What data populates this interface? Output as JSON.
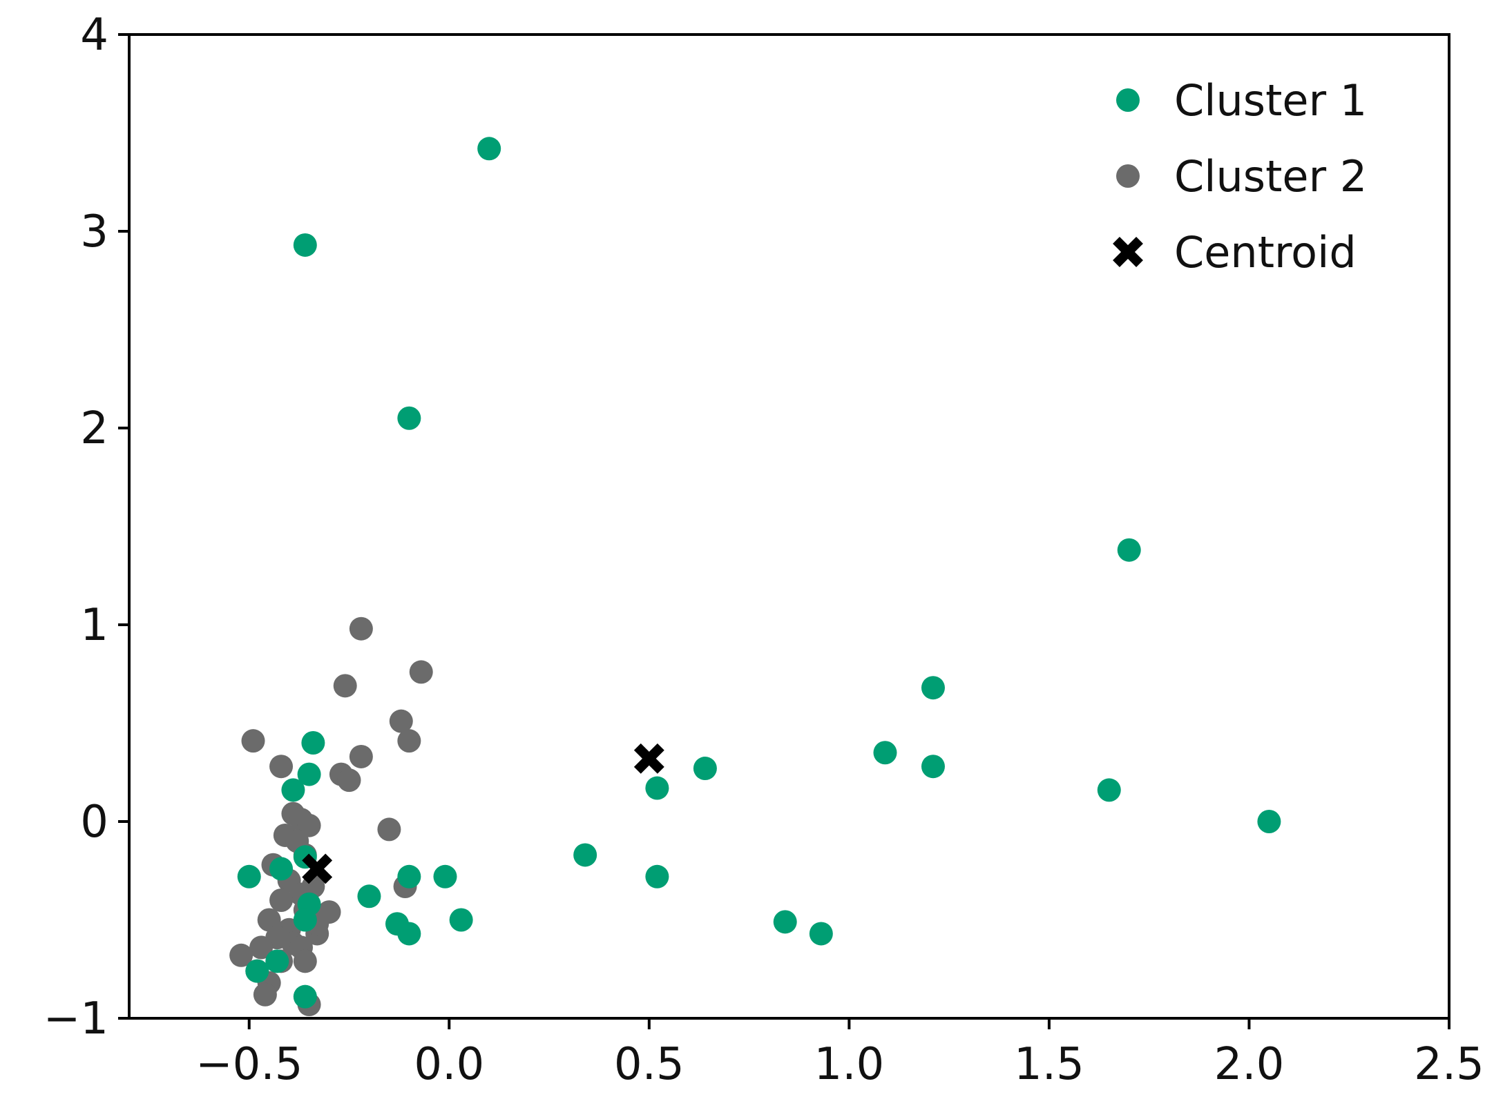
{
  "chart_data": {
    "type": "scatter",
    "title": "",
    "xlabel": "",
    "ylabel": "",
    "xlim": [
      -0.8,
      2.5
    ],
    "ylim": [
      -1,
      4
    ],
    "grid": false,
    "legend_position": "top-right",
    "x_ticks": [
      {
        "value": -0.5,
        "label": "−0.5"
      },
      {
        "value": 0.0,
        "label": "0.0"
      },
      {
        "value": 0.5,
        "label": "0.5"
      },
      {
        "value": 1.0,
        "label": "1.0"
      },
      {
        "value": 1.5,
        "label": "1.5"
      },
      {
        "value": 2.0,
        "label": "2.0"
      },
      {
        "value": 2.5,
        "label": "2.5"
      }
    ],
    "y_ticks": [
      {
        "value": -1,
        "label": "−1"
      },
      {
        "value": 0,
        "label": "0"
      },
      {
        "value": 1,
        "label": "1"
      },
      {
        "value": 2,
        "label": "2"
      },
      {
        "value": 3,
        "label": "3"
      },
      {
        "value": 4,
        "label": "4"
      }
    ],
    "series": [
      {
        "name": "Cluster 2",
        "color": "#6b6b6b",
        "marker": "circle",
        "points": [
          [
            -0.22,
            0.98
          ],
          [
            -0.26,
            0.69
          ],
          [
            -0.07,
            0.76
          ],
          [
            -0.12,
            0.51
          ],
          [
            -0.1,
            0.41
          ],
          [
            -0.49,
            0.41
          ],
          [
            -0.42,
            0.28
          ],
          [
            -0.22,
            0.33
          ],
          [
            -0.27,
            0.24
          ],
          [
            -0.25,
            0.21
          ],
          [
            -0.15,
            -0.04
          ],
          [
            -0.39,
            0.04
          ],
          [
            -0.37,
            0.01
          ],
          [
            -0.35,
            -0.02
          ],
          [
            -0.41,
            -0.07
          ],
          [
            -0.38,
            -0.1
          ],
          [
            -0.44,
            -0.22
          ],
          [
            -0.36,
            -0.17
          ],
          [
            -0.4,
            -0.3
          ],
          [
            -0.34,
            -0.33
          ],
          [
            -0.37,
            -0.37
          ],
          [
            -0.42,
            -0.4
          ],
          [
            -0.45,
            -0.5
          ],
          [
            -0.4,
            -0.55
          ],
          [
            -0.36,
            -0.45
          ],
          [
            -0.3,
            -0.46
          ],
          [
            -0.33,
            -0.57
          ],
          [
            -0.39,
            -0.62
          ],
          [
            -0.43,
            -0.59
          ],
          [
            -0.47,
            -0.64
          ],
          [
            -0.52,
            -0.68
          ],
          [
            -0.48,
            -0.76
          ],
          [
            -0.45,
            -0.82
          ],
          [
            -0.42,
            -0.71
          ],
          [
            -0.37,
            -0.64
          ],
          [
            -0.36,
            -0.71
          ],
          [
            -0.46,
            -0.88
          ],
          [
            -0.35,
            -0.93
          ],
          [
            -0.11,
            -0.33
          ],
          [
            -0.33,
            -0.52
          ]
        ]
      },
      {
        "name": "Cluster 1",
        "color": "#009e73",
        "marker": "circle",
        "points": [
          [
            0.1,
            3.42
          ],
          [
            -0.36,
            2.93
          ],
          [
            -0.1,
            2.05
          ],
          [
            1.7,
            1.38
          ],
          [
            1.21,
            0.68
          ],
          [
            1.09,
            0.35
          ],
          [
            1.21,
            0.28
          ],
          [
            0.64,
            0.27
          ],
          [
            0.52,
            0.17
          ],
          [
            1.65,
            0.16
          ],
          [
            2.05,
            0.0
          ],
          [
            -0.34,
            0.4
          ],
          [
            -0.35,
            0.24
          ],
          [
            -0.39,
            0.16
          ],
          [
            0.34,
            -0.17
          ],
          [
            -0.5,
            -0.28
          ],
          [
            -0.42,
            -0.24
          ],
          [
            -0.36,
            -0.18
          ],
          [
            -0.1,
            -0.28
          ],
          [
            -0.01,
            -0.28
          ],
          [
            0.52,
            -0.28
          ],
          [
            -0.2,
            -0.38
          ],
          [
            -0.35,
            -0.42
          ],
          [
            -0.36,
            -0.5
          ],
          [
            0.03,
            -0.5
          ],
          [
            -0.13,
            -0.52
          ],
          [
            -0.1,
            -0.57
          ],
          [
            0.84,
            -0.51
          ],
          [
            0.93,
            -0.57
          ],
          [
            -0.43,
            -0.71
          ],
          [
            -0.48,
            -0.76
          ],
          [
            -0.36,
            -0.89
          ]
        ]
      },
      {
        "name": "Centroid",
        "color": "#000000",
        "marker": "x",
        "points": [
          [
            -0.33,
            -0.24
          ],
          [
            0.5,
            0.32
          ]
        ]
      }
    ],
    "legend": [
      {
        "label": "Cluster 1",
        "color": "#009e73",
        "marker": "circle"
      },
      {
        "label": "Cluster 2",
        "color": "#6b6b6b",
        "marker": "circle"
      },
      {
        "label": "Centroid",
        "color": "#000000",
        "marker": "x"
      }
    ]
  }
}
